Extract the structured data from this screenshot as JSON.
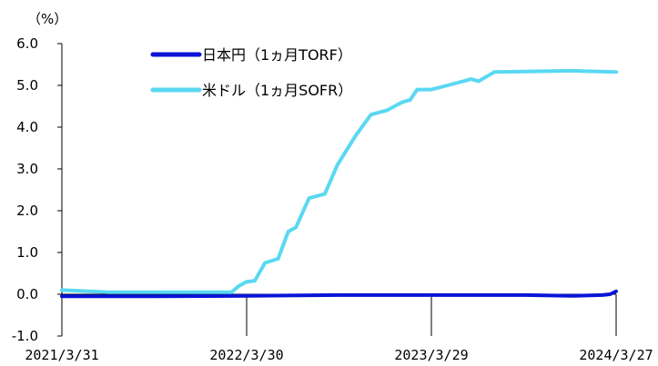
{
  "chart_data": {
    "type": "line",
    "unit_label": "（%）",
    "y_ticks": [
      "6.0",
      "5.0",
      "4.0",
      "3.0",
      "2.0",
      "1.0",
      "0.0",
      "-1.0"
    ],
    "x_ticks": [
      "2021/3/31",
      "2022/3/30",
      "2023/3/29",
      "2024/3/27"
    ],
    "ylim": [
      -1.0,
      6.0
    ],
    "xlim": [
      "2021-03-31",
      "2024-03-27"
    ],
    "grid": false,
    "legend_position": "top-center",
    "series": [
      {
        "name": "日本円（1ヵ月TORF）",
        "color": "#0a14d6",
        "points": [
          [
            "2021-03-31",
            -0.05
          ],
          [
            "2021-09-30",
            -0.05
          ],
          [
            "2022-03-30",
            -0.04
          ],
          [
            "2022-09-30",
            -0.02
          ],
          [
            "2023-03-29",
            -0.02
          ],
          [
            "2023-09-29",
            -0.02
          ],
          [
            "2023-12-29",
            -0.04
          ],
          [
            "2024-02-29",
            -0.02
          ],
          [
            "2024-03-15",
            0.0
          ],
          [
            "2024-03-27",
            0.07
          ]
        ]
      },
      {
        "name": "米ドル（1ヵ月SOFR）",
        "color": "#5ad8f2",
        "points": [
          [
            "2021-03-31",
            0.1
          ],
          [
            "2021-06-30",
            0.05
          ],
          [
            "2021-09-30",
            0.05
          ],
          [
            "2021-12-31",
            0.05
          ],
          [
            "2022-02-28",
            0.05
          ],
          [
            "2022-03-15",
            0.2
          ],
          [
            "2022-03-30",
            0.3
          ],
          [
            "2022-04-15",
            0.32
          ],
          [
            "2022-05-05",
            0.75
          ],
          [
            "2022-05-31",
            0.85
          ],
          [
            "2022-06-20",
            1.5
          ],
          [
            "2022-07-05",
            1.6
          ],
          [
            "2022-07-31",
            2.3
          ],
          [
            "2022-08-31",
            2.4
          ],
          [
            "2022-09-25",
            3.1
          ],
          [
            "2022-10-31",
            3.8
          ],
          [
            "2022-11-30",
            4.3
          ],
          [
            "2022-12-31",
            4.4
          ],
          [
            "2023-01-31",
            4.6
          ],
          [
            "2023-02-15",
            4.65
          ],
          [
            "2023-03-01",
            4.9
          ],
          [
            "2023-03-29",
            4.9
          ],
          [
            "2023-04-30",
            5.0
          ],
          [
            "2023-05-31",
            5.1
          ],
          [
            "2023-06-15",
            5.15
          ],
          [
            "2023-06-30",
            5.1
          ],
          [
            "2023-07-31",
            5.32
          ],
          [
            "2023-09-30",
            5.33
          ],
          [
            "2023-12-31",
            5.35
          ],
          [
            "2024-03-27",
            5.32
          ]
        ]
      }
    ]
  }
}
